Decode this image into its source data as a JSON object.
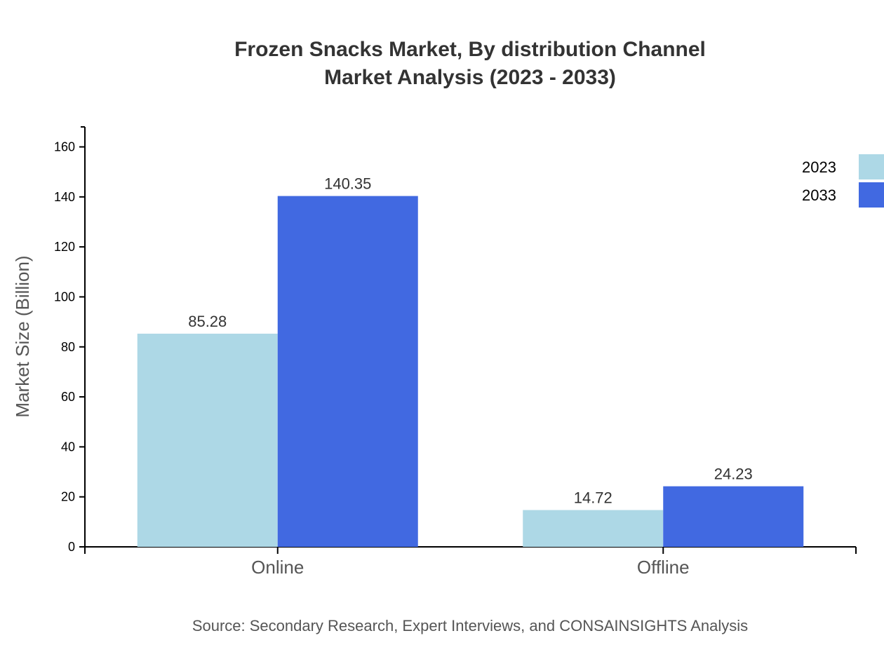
{
  "chart_data": {
    "type": "bar",
    "title": [
      "Frozen Snacks Market, By distribution Channel",
      "Market Analysis (2023 - 2033)"
    ],
    "xlabel": "",
    "ylabel": "Market Size (Billion)",
    "categories": [
      "Online",
      "Offline"
    ],
    "series": [
      {
        "name": "2023",
        "values": [
          85.28,
          14.72
        ],
        "color": "#ADD8E6"
      },
      {
        "name": "2033",
        "values": [
          140.35,
          24.23
        ],
        "color": "#4169E1"
      }
    ],
    "ylim": [
      0,
      168
    ],
    "yticks": [
      0,
      20,
      40,
      60,
      80,
      100,
      120,
      140,
      160
    ],
    "grid": false,
    "legend": "top-right",
    "source": "Source: Secondary Research, Expert Interviews, and CONSAINSIGHTS Analysis"
  }
}
